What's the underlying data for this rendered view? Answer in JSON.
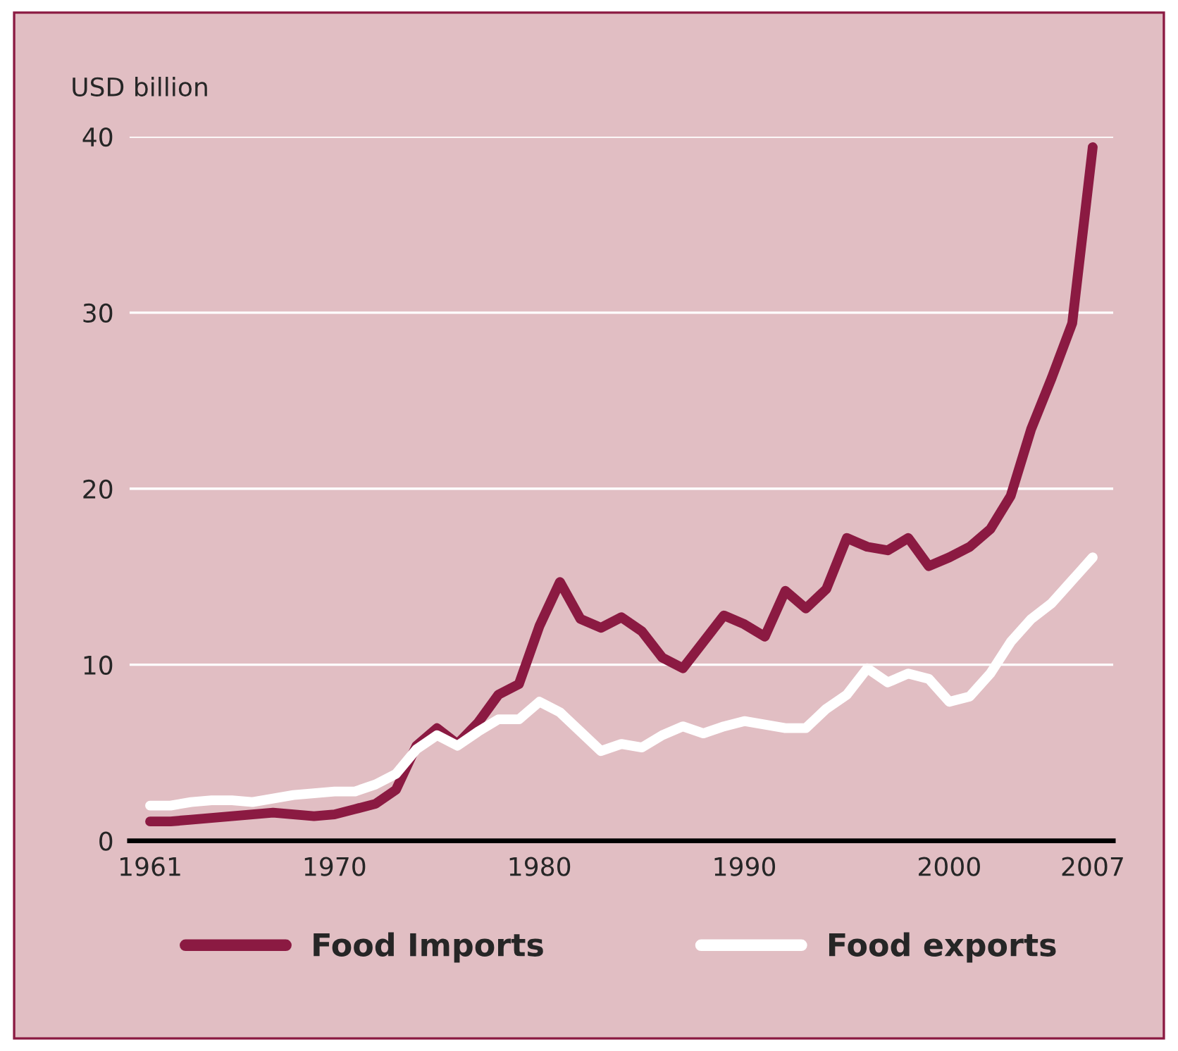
{
  "chart_data": {
    "type": "line",
    "ylabel": "USD billion",
    "x": [
      1961,
      1962,
      1963,
      1964,
      1965,
      1966,
      1967,
      1968,
      1969,
      1970,
      1971,
      1972,
      1973,
      1974,
      1975,
      1976,
      1977,
      1978,
      1979,
      1980,
      1981,
      1982,
      1983,
      1984,
      1985,
      1986,
      1987,
      1988,
      1989,
      1990,
      1991,
      1992,
      1993,
      1994,
      1995,
      1996,
      1997,
      1998,
      1999,
      2000,
      2001,
      2002,
      2003,
      2004,
      2005,
      2006,
      2007
    ],
    "series": [
      {
        "name": "Food Imports",
        "color": "#8b1a42",
        "values": [
          1.1,
          1.1,
          1.2,
          1.3,
          1.4,
          1.5,
          1.6,
          1.5,
          1.4,
          1.5,
          1.8,
          2.1,
          2.9,
          5.4,
          6.4,
          5.5,
          6.7,
          8.3,
          8.9,
          12.2,
          14.7,
          12.6,
          12.1,
          12.7,
          11.9,
          10.4,
          9.8,
          11.3,
          12.8,
          12.3,
          11.6,
          14.2,
          13.2,
          14.3,
          17.2,
          16.7,
          16.5,
          17.2,
          15.6,
          16.1,
          16.7,
          17.7,
          19.6,
          23.4,
          26.3,
          29.4,
          39.4
        ]
      },
      {
        "name": "Food exports",
        "color": "#ffffff",
        "values": [
          2.0,
          2.0,
          2.2,
          2.3,
          2.3,
          2.2,
          2.4,
          2.6,
          2.7,
          2.8,
          2.8,
          3.2,
          3.8,
          5.2,
          6.0,
          5.4,
          6.2,
          6.9,
          6.9,
          7.9,
          7.3,
          6.2,
          5.1,
          5.5,
          5.3,
          6.0,
          6.5,
          6.1,
          6.5,
          6.8,
          6.6,
          6.4,
          6.4,
          7.5,
          8.3,
          9.8,
          9.0,
          9.5,
          9.2,
          7.9,
          8.2,
          9.5,
          11.3,
          12.6,
          13.5,
          14.8,
          16.1
        ]
      }
    ],
    "xlim": [
      1960,
      2008
    ],
    "xticks": [
      1961,
      1970,
      1980,
      1990,
      2000,
      2007
    ],
    "ylim": [
      0,
      40
    ],
    "yticks": [
      0,
      10,
      20,
      30,
      40
    ],
    "grid": "y",
    "legend": "bottom",
    "marker": "none",
    "line_style": "solid"
  }
}
